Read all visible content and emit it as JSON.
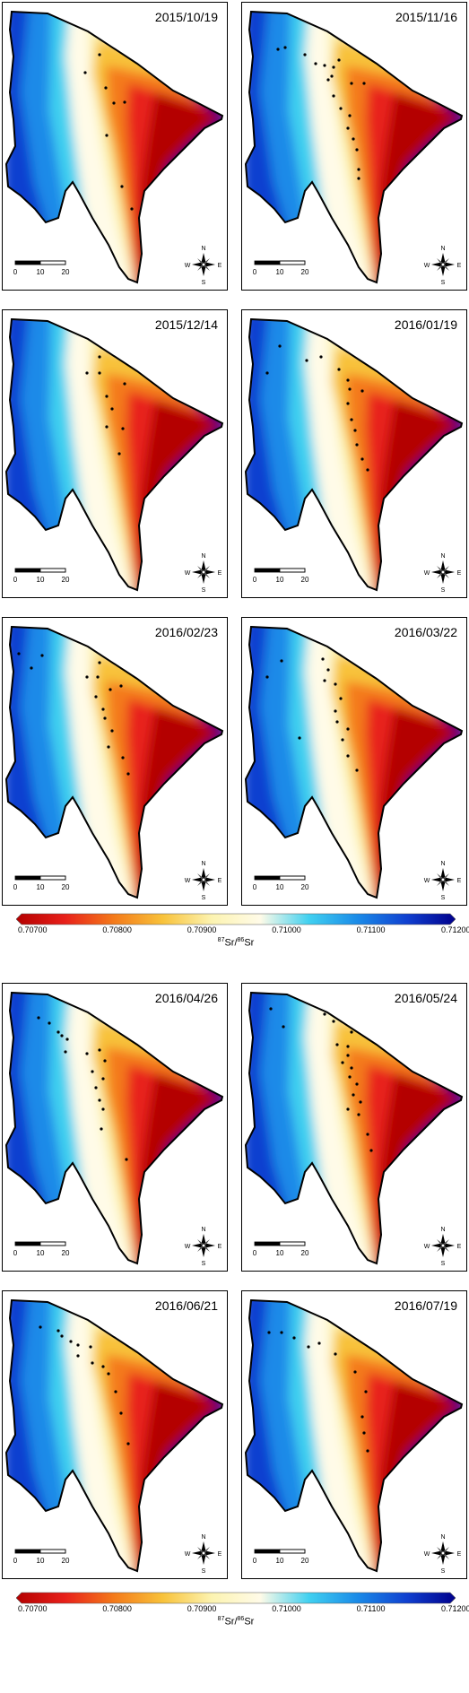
{
  "panels": [
    {
      "date": "2015/10/19"
    },
    {
      "date": "2015/11/16"
    },
    {
      "date": "2015/12/14"
    },
    {
      "date": "2016/01/19"
    },
    {
      "date": "2016/02/23"
    },
    {
      "date": "2016/03/22"
    },
    {
      "date": "2016/04/26"
    },
    {
      "date": "2016/05/24"
    },
    {
      "date": "2016/06/21"
    },
    {
      "date": "2016/07/19"
    }
  ],
  "scalebar": {
    "labels": [
      "0",
      "10",
      "20"
    ]
  },
  "compass": {
    "n": "N",
    "s": "S",
    "e": "E",
    "w": "W"
  },
  "colorbar": {
    "ticks": [
      "0.70700",
      "0.70800",
      "0.70900",
      "0.71000",
      "0.71100",
      "0.71200"
    ],
    "title_sup": "87",
    "title_mid": "Sr/",
    "title_sup2": "86",
    "title_end": "Sr",
    "colors": [
      "#b40000",
      "#e8201a",
      "#f47a1a",
      "#f8c23a",
      "#fcf3b0",
      "#fffbe8",
      "#40d0f0",
      "#1a8ae8",
      "#1040d0",
      "#00008c"
    ]
  }
}
